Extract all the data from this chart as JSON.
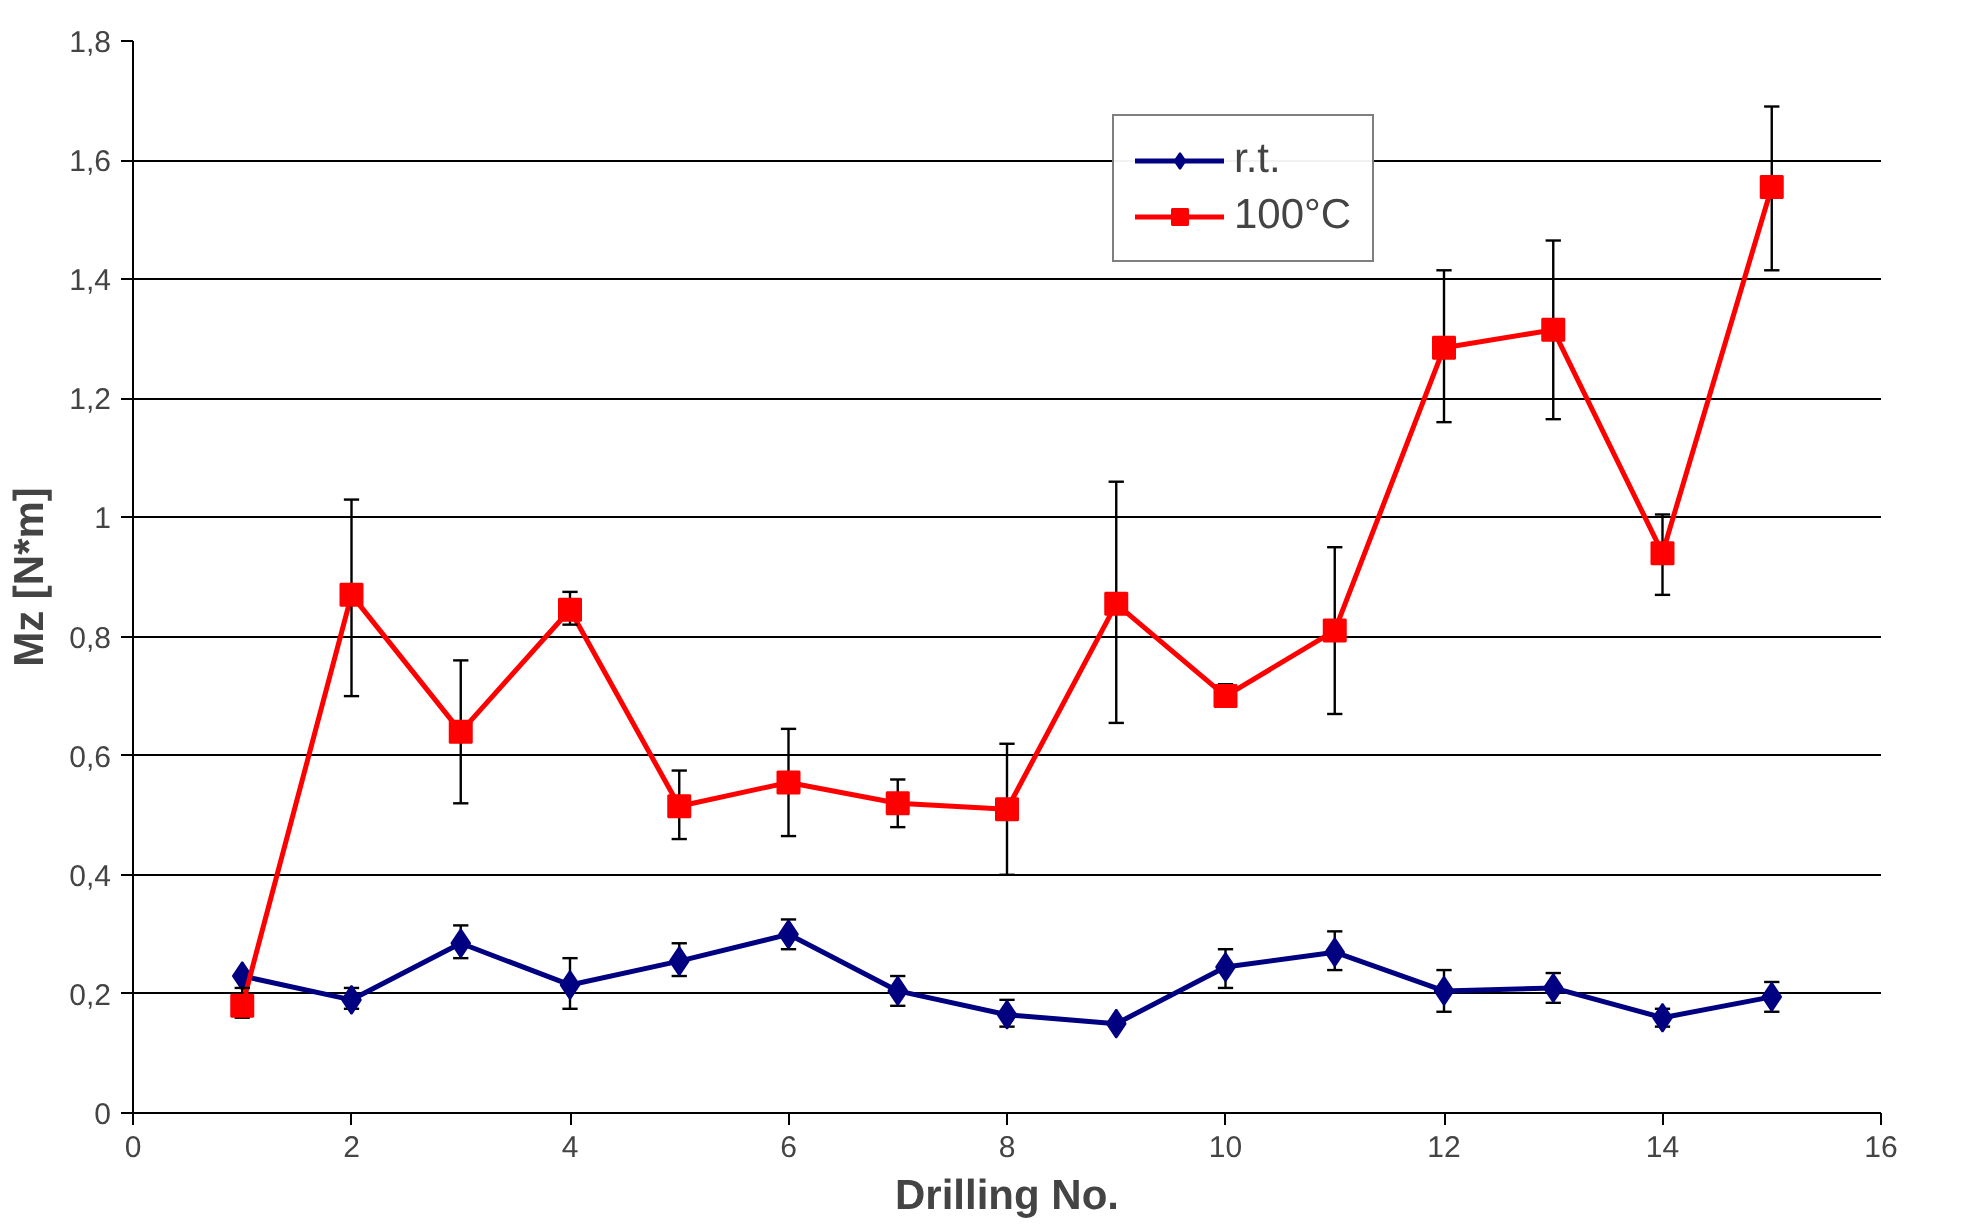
{
  "chart_data": {
    "type": "line",
    "xlabel": "Drilling No.",
    "ylabel": "Mz [N*m]",
    "x": [
      1,
      2,
      3,
      4,
      5,
      6,
      7,
      8,
      9,
      10,
      11,
      12,
      13,
      14,
      15
    ],
    "series": [
      {
        "name": "r.t.",
        "color": "#000080",
        "marker": "diamond",
        "values": [
          0.23,
          0.19,
          0.285,
          0.215,
          0.255,
          0.3,
          0.205,
          0.165,
          0.15,
          0.245,
          0.27,
          0.205,
          0.21,
          0.16,
          0.195
        ],
        "errors": [
          null,
          [
            0.175,
            0.21
          ],
          [
            0.26,
            0.315
          ],
          [
            0.175,
            0.26
          ],
          [
            0.23,
            0.285
          ],
          [
            0.275,
            0.325
          ],
          [
            0.18,
            0.23
          ],
          [
            0.145,
            0.19
          ],
          null,
          [
            0.21,
            0.275
          ],
          [
            0.24,
            0.305
          ],
          [
            0.17,
            0.24
          ],
          [
            0.185,
            0.235
          ],
          [
            0.145,
            0.175
          ],
          [
            0.17,
            0.22
          ]
        ]
      },
      {
        "name": "100°C",
        "color": "#ff0000",
        "marker": "square",
        "values": [
          0.18,
          0.87,
          0.64,
          0.845,
          0.515,
          0.555,
          0.52,
          0.51,
          0.855,
          0.7,
          0.81,
          1.285,
          1.315,
          0.94,
          1.555
        ],
        "errors": [
          [
            0.16,
            0.21
          ],
          [
            0.7,
            1.03
          ],
          [
            0.52,
            0.76
          ],
          [
            0.82,
            0.875
          ],
          [
            0.46,
            0.575
          ],
          [
            0.465,
            0.645
          ],
          [
            0.48,
            0.56
          ],
          [
            0.4,
            0.62
          ],
          [
            0.655,
            1.06
          ],
          [
            0.69,
            0.72
          ],
          [
            0.67,
            0.95
          ],
          [
            1.16,
            1.415
          ],
          [
            1.165,
            1.465
          ],
          [
            0.87,
            1.005
          ],
          [
            1.415,
            1.69
          ]
        ]
      }
    ],
    "xlim": [
      0,
      16
    ],
    "xticks": [
      0,
      2,
      4,
      6,
      8,
      10,
      12,
      14,
      16
    ],
    "ylim": [
      0,
      1.8
    ],
    "yticks": [
      0,
      {
        "value": 0.2,
        "label": "0,2"
      },
      {
        "value": 0.4,
        "label": "0,4"
      },
      {
        "value": 0.6,
        "label": "0,6"
      },
      {
        "value": 0.8,
        "label": "0,8"
      },
      1,
      {
        "value": 1.2,
        "label": "1,2"
      },
      {
        "value": 1.4,
        "label": "1,4"
      },
      {
        "value": 1.6,
        "label": "1,6"
      },
      {
        "value": 1.8,
        "label": "1,8"
      }
    ],
    "grid": "y",
    "legend": "top right",
    "line_style": "solid"
  }
}
